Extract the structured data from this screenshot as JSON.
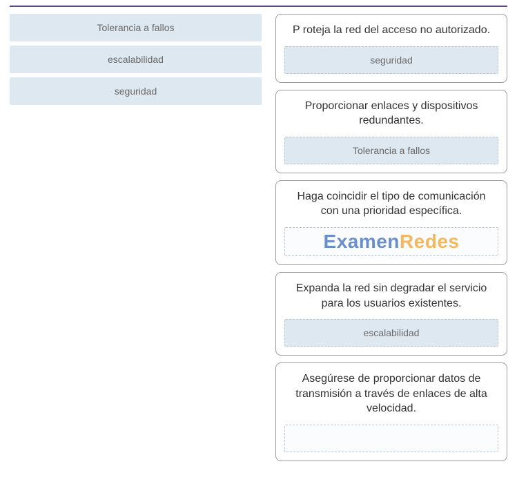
{
  "colors": {
    "divider": "#5d4a8a",
    "card_border": "#9a9a9a",
    "drag_bg": "#dde8f1",
    "drag_text": "#6a6a6a",
    "prompt_text": "#333333",
    "slot_border": "#b8c4d0",
    "watermark_blue": "#6a8fca",
    "watermark_orange": "#f4b860",
    "background": "#ffffff"
  },
  "left_items": [
    {
      "label": "Tolerancia a fallos"
    },
    {
      "label": "escalabilidad"
    },
    {
      "label": "seguridad"
    }
  ],
  "right_cards": [
    {
      "prompt": "P roteja la red del acceso no autorizado.",
      "slot_type": "filled",
      "slot_value": "seguridad"
    },
    {
      "prompt": "Proporcionar enlaces y dispositivos redundantes.",
      "slot_type": "filled",
      "slot_value": "Tolerancia a fallos"
    },
    {
      "prompt": "Haga coincidir el tipo de comunicación con una prioridad específica.",
      "slot_type": "watermark",
      "watermark_part1": "Examen",
      "watermark_part2": "Redes"
    },
    {
      "prompt": "Expanda la red sin degradar el servicio para los usuarios existentes.",
      "slot_type": "filled",
      "slot_value": "escalabilidad"
    },
    {
      "prompt": "Asegúrese de proporcionar datos de transmisión a través de enlaces de alta velocidad.",
      "slot_type": "empty",
      "slot_value": ""
    }
  ]
}
